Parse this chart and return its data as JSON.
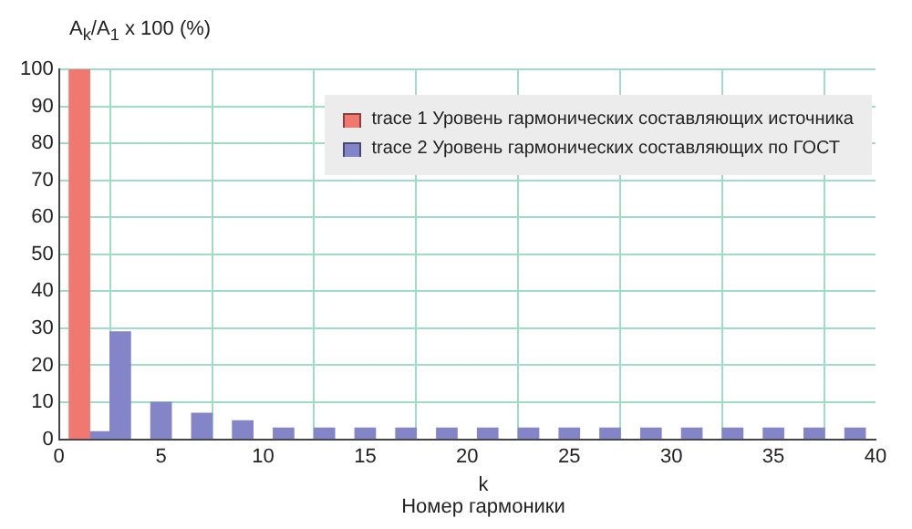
{
  "chart_data": {
    "type": "bar",
    "ylabel": "A$_{k}$/A$_{1}$ x 100 (%)",
    "xlabel": "k",
    "annotations": [
      "Номер гармоники"
    ],
    "x": [
      1,
      2,
      3,
      4,
      5,
      6,
      7,
      8,
      9,
      10,
      11,
      12,
      13,
      14,
      15,
      16,
      17,
      18,
      19,
      20,
      21,
      22,
      23,
      24,
      25,
      26,
      27,
      28,
      29,
      30,
      31,
      32,
      33,
      34,
      35,
      36,
      37,
      38,
      39
    ],
    "series": [
      {
        "name": "trace 1   Уровень гармонических составляющих источника",
        "color": "#f07870",
        "values": [
          100,
          null,
          null,
          null,
          null,
          null,
          null,
          null,
          null,
          null,
          null,
          null,
          null,
          null,
          null,
          null,
          null,
          null,
          null,
          null,
          null,
          null,
          null,
          null,
          null,
          null,
          null,
          null,
          null,
          null,
          null,
          null,
          null,
          null,
          null,
          null,
          null,
          null,
          null
        ]
      },
      {
        "name": "trace 2   Уровень гармонических составляющих по ГОСТ",
        "color": "#8484c8",
        "values": [
          null,
          2,
          29,
          null,
          10,
          null,
          7,
          null,
          5,
          null,
          3,
          null,
          3,
          null,
          3,
          null,
          3,
          null,
          3,
          null,
          3,
          null,
          3,
          null,
          3,
          null,
          3,
          null,
          3,
          null,
          3,
          null,
          3,
          null,
          3,
          null,
          3,
          null,
          3
        ]
      }
    ],
    "xlim": [
      0,
      40
    ],
    "xticks": [
      0,
      5,
      10,
      15,
      20,
      25,
      30,
      35,
      40
    ],
    "ylim": [
      0,
      100
    ],
    "yticks": [
      0,
      10,
      20,
      30,
      40,
      50,
      60,
      70,
      80,
      90,
      100
    ],
    "grid": true,
    "legend": "top right"
  }
}
